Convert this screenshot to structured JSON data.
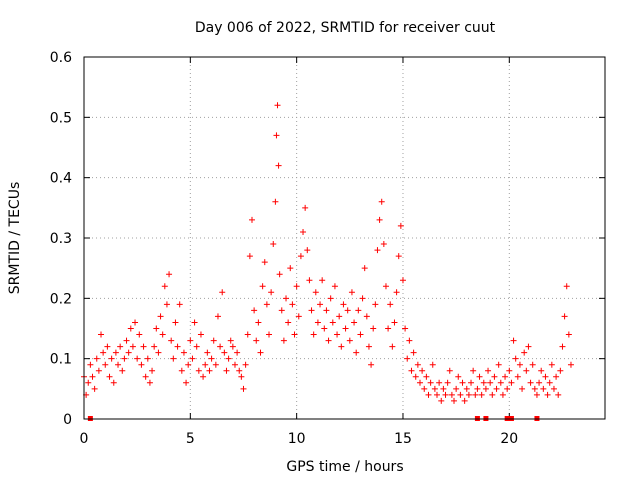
{
  "chart_data": {
    "type": "scatter",
    "title": "Day 006 of 2022, SRMTID for receiver cuut",
    "xlabel": "GPS time / hours",
    "ylabel": "SRMTID / TECUs",
    "xlim": [
      0,
      24.5
    ],
    "ylim": [
      0,
      0.6
    ],
    "xticks": [
      0,
      5,
      10,
      15,
      20
    ],
    "xtick_labels": [
      "0",
      "5",
      "10",
      "15",
      "20"
    ],
    "yticks": [
      0,
      0.1,
      0.2,
      0.3,
      0.4,
      0.5,
      0.6
    ],
    "ytick_labels": [
      "0",
      "0.1",
      "0.2",
      "0.3",
      "0.4",
      "0.5",
      "0.6"
    ],
    "grid": true,
    "marker": "plus",
    "color": "#ff0000",
    "series": [
      {
        "name": "SRMTID",
        "points": [
          [
            0.0,
            0.07
          ],
          [
            0.1,
            0.04
          ],
          [
            0.2,
            0.06
          ],
          [
            0.3,
            0.09
          ],
          [
            0.4,
            0.07
          ],
          [
            0.5,
            0.05
          ],
          [
            0.6,
            0.1
          ],
          [
            0.7,
            0.08
          ],
          [
            0.8,
            0.14
          ],
          [
            0.9,
            0.11
          ],
          [
            1.0,
            0.09
          ],
          [
            1.1,
            0.12
          ],
          [
            1.2,
            0.07
          ],
          [
            1.3,
            0.1
          ],
          [
            1.4,
            0.06
          ],
          [
            1.5,
            0.11
          ],
          [
            1.6,
            0.09
          ],
          [
            1.7,
            0.12
          ],
          [
            1.8,
            0.08
          ],
          [
            1.9,
            0.1
          ],
          [
            2.0,
            0.13
          ],
          [
            2.1,
            0.11
          ],
          [
            2.2,
            0.15
          ],
          [
            2.3,
            0.12
          ],
          [
            2.4,
            0.16
          ],
          [
            2.5,
            0.1
          ],
          [
            2.6,
            0.14
          ],
          [
            2.7,
            0.09
          ],
          [
            2.8,
            0.12
          ],
          [
            2.9,
            0.07
          ],
          [
            3.0,
            0.1
          ],
          [
            3.1,
            0.06
          ],
          [
            3.2,
            0.08
          ],
          [
            3.3,
            0.12
          ],
          [
            3.4,
            0.15
          ],
          [
            3.5,
            0.11
          ],
          [
            3.6,
            0.17
          ],
          [
            3.7,
            0.14
          ],
          [
            3.8,
            0.22
          ],
          [
            3.9,
            0.19
          ],
          [
            4.0,
            0.24
          ],
          [
            4.1,
            0.13
          ],
          [
            4.2,
            0.1
          ],
          [
            4.3,
            0.16
          ],
          [
            4.4,
            0.12
          ],
          [
            4.5,
            0.19
          ],
          [
            4.6,
            0.08
          ],
          [
            4.7,
            0.11
          ],
          [
            4.8,
            0.06
          ],
          [
            4.9,
            0.09
          ],
          [
            5.0,
            0.13
          ],
          [
            5.1,
            0.1
          ],
          [
            5.2,
            0.16
          ],
          [
            5.3,
            0.12
          ],
          [
            5.4,
            0.08
          ],
          [
            5.5,
            0.14
          ],
          [
            5.6,
            0.07
          ],
          [
            5.7,
            0.09
          ],
          [
            5.8,
            0.11
          ],
          [
            5.9,
            0.08
          ],
          [
            6.0,
            0.1
          ],
          [
            6.1,
            0.13
          ],
          [
            6.2,
            0.09
          ],
          [
            6.3,
            0.17
          ],
          [
            6.4,
            0.12
          ],
          [
            6.5,
            0.21
          ],
          [
            6.6,
            0.11
          ],
          [
            6.7,
            0.08
          ],
          [
            6.8,
            0.1
          ],
          [
            6.9,
            0.13
          ],
          [
            7.0,
            0.12
          ],
          [
            7.1,
            0.09
          ],
          [
            7.2,
            0.11
          ],
          [
            7.3,
            0.08
          ],
          [
            7.4,
            0.07
          ],
          [
            7.5,
            0.05
          ],
          [
            7.6,
            0.09
          ],
          [
            7.7,
            0.14
          ],
          [
            7.8,
            0.27
          ],
          [
            7.9,
            0.33
          ],
          [
            8.0,
            0.18
          ],
          [
            8.1,
            0.13
          ],
          [
            8.2,
            0.16
          ],
          [
            8.3,
            0.11
          ],
          [
            8.4,
            0.22
          ],
          [
            8.5,
            0.26
          ],
          [
            8.6,
            0.19
          ],
          [
            8.7,
            0.14
          ],
          [
            8.8,
            0.21
          ],
          [
            8.9,
            0.29
          ],
          [
            9.0,
            0.36
          ],
          [
            9.05,
            0.47
          ],
          [
            9.1,
            0.52
          ],
          [
            9.15,
            0.42
          ],
          [
            9.2,
            0.24
          ],
          [
            9.3,
            0.18
          ],
          [
            9.4,
            0.13
          ],
          [
            9.5,
            0.2
          ],
          [
            9.6,
            0.16
          ],
          [
            9.7,
            0.25
          ],
          [
            9.8,
            0.19
          ],
          [
            9.9,
            0.14
          ],
          [
            10.0,
            0.22
          ],
          [
            10.1,
            0.17
          ],
          [
            10.2,
            0.27
          ],
          [
            10.3,
            0.31
          ],
          [
            10.4,
            0.35
          ],
          [
            10.5,
            0.28
          ],
          [
            10.6,
            0.23
          ],
          [
            10.7,
            0.18
          ],
          [
            10.8,
            0.14
          ],
          [
            10.9,
            0.21
          ],
          [
            11.0,
            0.16
          ],
          [
            11.1,
            0.19
          ],
          [
            11.2,
            0.23
          ],
          [
            11.3,
            0.15
          ],
          [
            11.4,
            0.18
          ],
          [
            11.5,
            0.13
          ],
          [
            11.6,
            0.2
          ],
          [
            11.7,
            0.16
          ],
          [
            11.8,
            0.22
          ],
          [
            11.9,
            0.14
          ],
          [
            12.0,
            0.17
          ],
          [
            12.1,
            0.12
          ],
          [
            12.2,
            0.19
          ],
          [
            12.3,
            0.15
          ],
          [
            12.4,
            0.18
          ],
          [
            12.5,
            0.13
          ],
          [
            12.6,
            0.21
          ],
          [
            12.7,
            0.16
          ],
          [
            12.8,
            0.11
          ],
          [
            12.9,
            0.18
          ],
          [
            13.0,
            0.14
          ],
          [
            13.1,
            0.2
          ],
          [
            13.2,
            0.25
          ],
          [
            13.3,
            0.17
          ],
          [
            13.4,
            0.12
          ],
          [
            13.5,
            0.09
          ],
          [
            13.6,
            0.15
          ],
          [
            13.7,
            0.19
          ],
          [
            13.8,
            0.28
          ],
          [
            13.9,
            0.33
          ],
          [
            14.0,
            0.36
          ],
          [
            14.1,
            0.29
          ],
          [
            14.2,
            0.22
          ],
          [
            14.3,
            0.15
          ],
          [
            14.4,
            0.19
          ],
          [
            14.5,
            0.12
          ],
          [
            14.6,
            0.16
          ],
          [
            14.7,
            0.21
          ],
          [
            14.8,
            0.27
          ],
          [
            14.9,
            0.32
          ],
          [
            15.0,
            0.23
          ],
          [
            15.1,
            0.15
          ],
          [
            15.2,
            0.1
          ],
          [
            15.3,
            0.13
          ],
          [
            15.4,
            0.08
          ],
          [
            15.5,
            0.11
          ],
          [
            15.6,
            0.07
          ],
          [
            15.7,
            0.09
          ],
          [
            15.8,
            0.06
          ],
          [
            15.9,
            0.08
          ],
          [
            16.0,
            0.05
          ],
          [
            16.1,
            0.07
          ],
          [
            16.2,
            0.04
          ],
          [
            16.3,
            0.06
          ],
          [
            16.4,
            0.09
          ],
          [
            16.5,
            0.05
          ],
          [
            16.6,
            0.04
          ],
          [
            16.7,
            0.06
          ],
          [
            16.8,
            0.03
          ],
          [
            16.9,
            0.05
          ],
          [
            17.0,
            0.04
          ],
          [
            17.1,
            0.06
          ],
          [
            17.2,
            0.08
          ],
          [
            17.3,
            0.04
          ],
          [
            17.4,
            0.03
          ],
          [
            17.5,
            0.05
          ],
          [
            17.6,
            0.07
          ],
          [
            17.7,
            0.04
          ],
          [
            17.8,
            0.06
          ],
          [
            17.9,
            0.03
          ],
          [
            18.0,
            0.05
          ],
          [
            18.1,
            0.04
          ],
          [
            18.2,
            0.06
          ],
          [
            18.3,
            0.08
          ],
          [
            18.4,
            0.04
          ],
          [
            18.5,
            0.05
          ],
          [
            18.6,
            0.07
          ],
          [
            18.7,
            0.04
          ],
          [
            18.8,
            0.06
          ],
          [
            18.9,
            0.05
          ],
          [
            19.0,
            0.08
          ],
          [
            19.1,
            0.06
          ],
          [
            19.2,
            0.04
          ],
          [
            19.3,
            0.07
          ],
          [
            19.4,
            0.05
          ],
          [
            19.5,
            0.09
          ],
          [
            19.6,
            0.06
          ],
          [
            19.7,
            0.04
          ],
          [
            19.8,
            0.07
          ],
          [
            19.9,
            0.05
          ],
          [
            20.0,
            0.08
          ],
          [
            20.1,
            0.06
          ],
          [
            20.2,
            0.13
          ],
          [
            20.3,
            0.1
          ],
          [
            20.4,
            0.07
          ],
          [
            20.5,
            0.09
          ],
          [
            20.6,
            0.05
          ],
          [
            20.7,
            0.11
          ],
          [
            20.8,
            0.08
          ],
          [
            20.9,
            0.12
          ],
          [
            21.0,
            0.06
          ],
          [
            21.1,
            0.09
          ],
          [
            21.2,
            0.05
          ],
          [
            21.3,
            0.04
          ],
          [
            21.4,
            0.06
          ],
          [
            21.5,
            0.08
          ],
          [
            21.6,
            0.05
          ],
          [
            21.7,
            0.07
          ],
          [
            21.8,
            0.04
          ],
          [
            21.9,
            0.06
          ],
          [
            22.0,
            0.09
          ],
          [
            22.1,
            0.05
          ],
          [
            22.2,
            0.07
          ],
          [
            22.3,
            0.04
          ],
          [
            22.4,
            0.08
          ],
          [
            22.5,
            0.12
          ],
          [
            22.6,
            0.17
          ],
          [
            22.7,
            0.22
          ],
          [
            22.8,
            0.14
          ],
          [
            22.9,
            0.09
          ]
        ]
      }
    ],
    "gap_markers_x": [
      0.3,
      18.5,
      18.9,
      19.9,
      20.1,
      21.3
    ]
  }
}
